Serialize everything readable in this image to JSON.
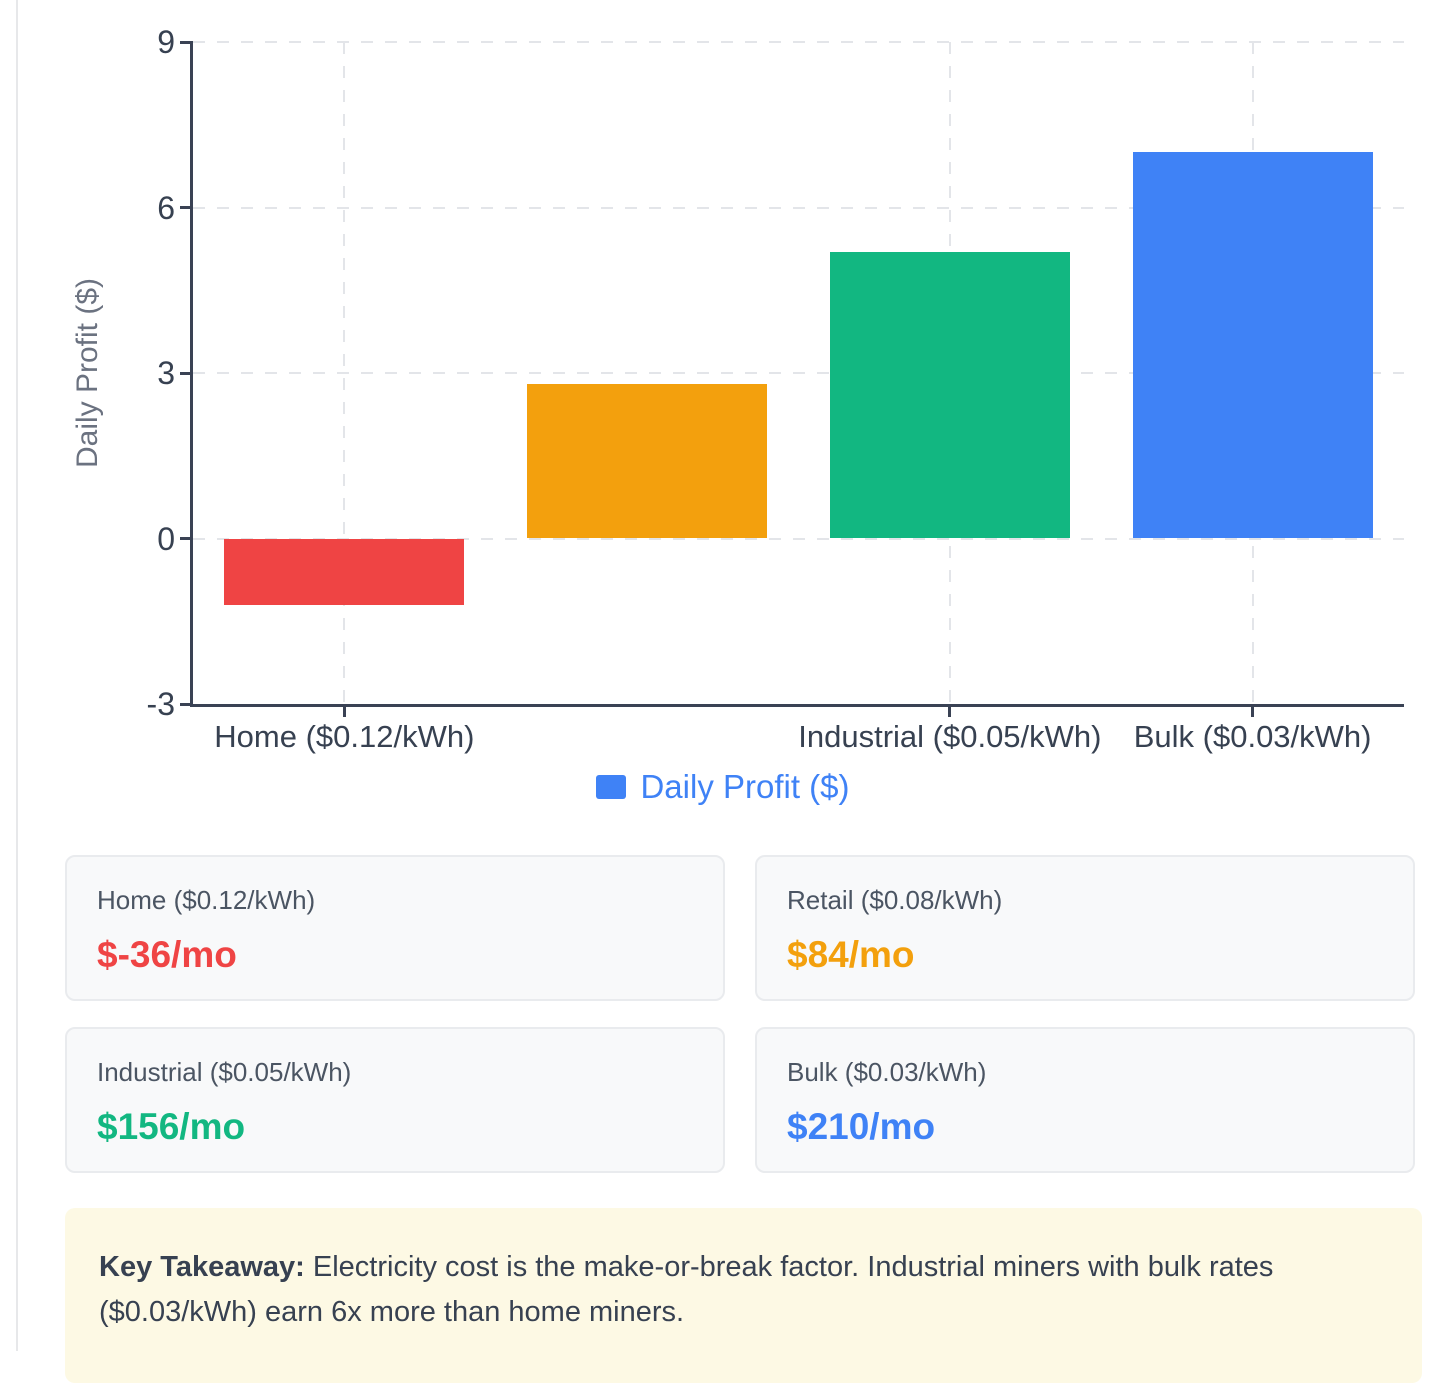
{
  "chart_data": {
    "type": "bar",
    "title": "",
    "xlabel": "",
    "ylabel": "Daily Profit ($)",
    "categories": [
      "Home ($0.12/kWh)",
      "Retail ($0.08/kWh)",
      "Industrial ($0.05/kWh)",
      "Bulk ($0.03/kWh)"
    ],
    "values": [
      -1.2,
      2.8,
      5.2,
      7.0
    ],
    "bar_colors": [
      "#ef4444",
      "#f3a00d",
      "#12b781",
      "#3f82f6"
    ],
    "ylim": [
      -3,
      9
    ],
    "y_ticks": [
      9,
      6,
      3,
      0,
      -3
    ],
    "visible_x_tick_labels": [
      "Home ($0.12/kWh)",
      "",
      "Industrial ($0.05/kWh)",
      "Bulk ($0.03/kWh)"
    ],
    "grid": "dashed",
    "legend": {
      "label": "Daily Profit ($)",
      "color": "#3f82f6",
      "position": "bottom"
    }
  },
  "cards": [
    {
      "label": "Home ($0.12/kWh)",
      "value": "$-36/mo",
      "color": "#ef4444"
    },
    {
      "label": "Retail ($0.08/kWh)",
      "value": "$84/mo",
      "color": "#f3a00d"
    },
    {
      "label": "Industrial ($0.05/kWh)",
      "value": "$156/mo",
      "color": "#12b781"
    },
    {
      "label": "Bulk ($0.03/kWh)",
      "value": "$210/mo",
      "color": "#3f82f6"
    }
  ],
  "note": {
    "bold_label": "Key Takeaway:",
    "text": "Electricity cost is the make-or-break factor. Industrial miners with bulk rates ($0.03/kWh) earn 6x more than home miners.",
    "bg": "#fdf9e4"
  }
}
